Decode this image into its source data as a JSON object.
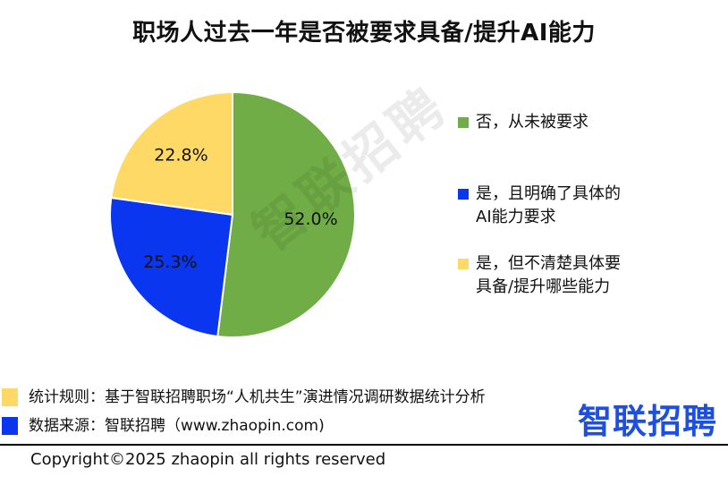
{
  "chart_data": {
    "type": "pie",
    "title": "职场人过去一年是否被要求具备/提升AI能力",
    "slices": [
      {
        "name": "否，从未被要求",
        "value": 52.0,
        "label": "52.0%",
        "color": "#70ad47"
      },
      {
        "name": "是，且明确了具体的AI能力要求",
        "value": 25.3,
        "label": "25.3%",
        "color": "#0a36f0"
      },
      {
        "name": "是，但不清楚具体要具备/提升哪些能力",
        "value": 22.8,
        "label": "22.8%",
        "color": "#ffd966"
      }
    ],
    "legend_position": "right"
  },
  "legend": [
    {
      "lines": [
        "否，从未被要求"
      ],
      "color": "#70ad47"
    },
    {
      "lines": [
        "是，且明确了具体的",
        "AI能力要求"
      ],
      "color": "#0a36f0"
    },
    {
      "lines": [
        "是，但不清楚具体要",
        "具备/提升哪些能力"
      ],
      "color": "#ffd966"
    }
  ],
  "watermark": "智联招聘",
  "notes": [
    {
      "text": "统计规则：基于智联招聘职场“人机共生”演进情况调研数据统计分析",
      "color": "#ffd966"
    },
    {
      "text": "数据来源：智联招聘（www.zhaopin.com)",
      "color": "#0a36f0"
    }
  ],
  "brand_logo": "智联招聘",
  "copyright": "Copyright©2025 zhaopin all rights reserved"
}
